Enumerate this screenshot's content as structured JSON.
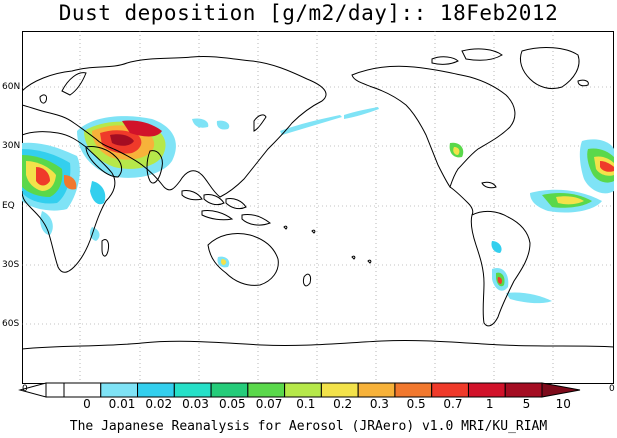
{
  "title": "Dust deposition [g/m2/day]:: 18Feb2012",
  "latitude_labels": [
    "60N",
    "30N",
    "EQ",
    "30S",
    "60S"
  ],
  "colorbar": {
    "left_edge": "0",
    "right_edge": "0",
    "labels": [
      "0",
      "0.01",
      "0.02",
      "0.03",
      "0.05",
      "0.07",
      "0.1",
      "0.2",
      "0.3",
      "0.5",
      "0.7",
      "1",
      "5",
      "10"
    ],
    "colors": [
      "#ffffff",
      "#ffffff",
      "#7fe3f6",
      "#33cfee",
      "#26e0c8",
      "#25cc7a",
      "#5ad84b",
      "#b6e84a",
      "#f3e24a",
      "#f7b23a",
      "#f1782e",
      "#ef3a2a",
      "#d1122a",
      "#a40d22",
      "#7d0b1b"
    ]
  },
  "footer": "The Japanese Reanalysis for Aerosol (JRAero) v1.0 MRI/KU_RIAM"
}
